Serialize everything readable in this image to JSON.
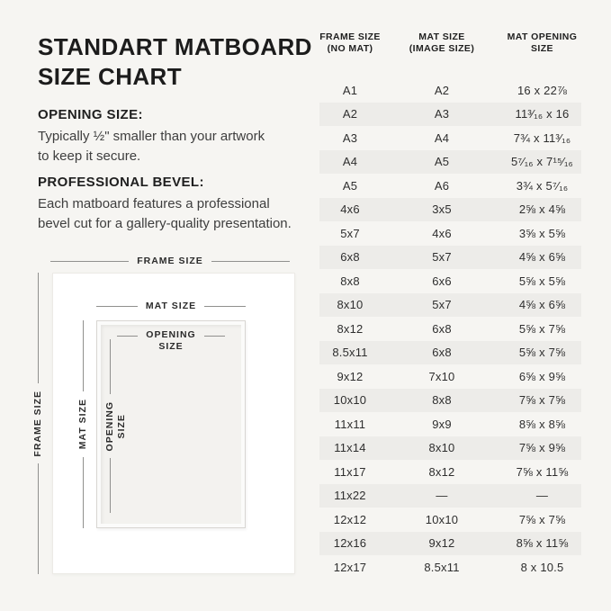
{
  "colors": {
    "background": "#f6f5f2",
    "row_shade": "#edece9",
    "frame_white": "#ffffff",
    "mat_interior": "#f3f2ef",
    "diagram_line": "#90908e",
    "text_dark": "#1c1c1c",
    "text_body": "#3e3e3e"
  },
  "info": {
    "title": "STANDART MATBOARD\nSIZE CHART",
    "opening": {
      "heading": "OPENING SIZE:",
      "body": "Typically ½\" smaller than your artwork\nto keep it secure."
    },
    "bevel": {
      "heading": "PROFESSIONAL BEVEL:",
      "body": "Each matboard features a professional\nbevel cut for a gallery-quality presentation."
    }
  },
  "diagram": {
    "frame_label": "FRAME SIZE",
    "frame_label_v": "FRAME SIZE",
    "mat_label": "MAT SIZE",
    "mat_label_v": "MAT SIZE",
    "opening_label": "OPENING\nSIZE",
    "opening_label_v": "OPENING\nSIZE"
  },
  "chart_data": {
    "type": "table",
    "title": "STANDART MATBOARD SIZE CHART",
    "columns": [
      "FRAME SIZE\n(NO MAT)",
      "MAT SIZE\n(IMAGE SIZE)",
      "MAT OPENING\nSIZE"
    ],
    "rows": [
      [
        "A1",
        "A2",
        "16 x 22⅞"
      ],
      [
        "A2",
        "A3",
        "11³⁄₁₆ x 16"
      ],
      [
        "A3",
        "A4",
        "7¾ x 11³⁄₁₆"
      ],
      [
        "A4",
        "A5",
        "5⁷⁄₁₆ x 7¹⁵⁄₁₆"
      ],
      [
        "A5",
        "A6",
        "3¾ x 5⁷⁄₁₆"
      ],
      [
        "4x6",
        "3x5",
        "2⅝ x 4⅝"
      ],
      [
        "5x7",
        "4x6",
        "3⅝ x 5⅝"
      ],
      [
        "6x8",
        "5x7",
        "4⅝ x 6⅝"
      ],
      [
        "8x8",
        "6x6",
        "5⅝ x 5⅝"
      ],
      [
        "8x10",
        "5x7",
        "4⅝ x 6⅝"
      ],
      [
        "8x12",
        "6x8",
        "5⅝ x 7⅝"
      ],
      [
        "8.5x11",
        "6x8",
        "5⅝ x 7⅝"
      ],
      [
        "9x12",
        "7x10",
        "6⅝ x 9⅝"
      ],
      [
        "10x10",
        "8x8",
        "7⅝ x 7⅝"
      ],
      [
        "11x11",
        "9x9",
        "8⅝ x 8⅝"
      ],
      [
        "11x14",
        "8x10",
        "7⅝ x 9⅝"
      ],
      [
        "11x17",
        "8x12",
        "7⅝ x 11⅝"
      ],
      [
        "11x22",
        "—",
        "—"
      ],
      [
        "12x12",
        "10x10",
        "7⅝ x 7⅝"
      ],
      [
        "12x16",
        "9x12",
        "8⅝ x 11⅝"
      ],
      [
        "12x17",
        "8.5x11",
        "8 x 10.5"
      ]
    ]
  }
}
